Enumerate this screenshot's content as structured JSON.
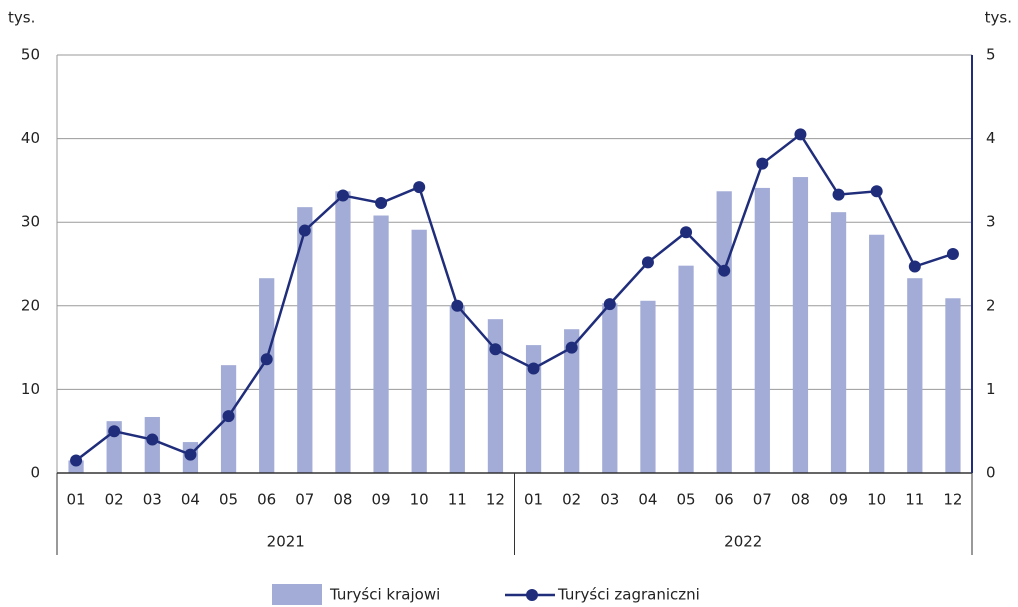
{
  "chart_data": {
    "type": "bar-line",
    "y_unit": "tys.",
    "y2_unit": "tys.",
    "categories": [
      "01",
      "02",
      "03",
      "04",
      "05",
      "06",
      "07",
      "08",
      "09",
      "10",
      "11",
      "12",
      "01",
      "02",
      "03",
      "04",
      "05",
      "06",
      "07",
      "08",
      "09",
      "10",
      "11",
      "12"
    ],
    "groups": [
      "2021",
      "2022"
    ],
    "series": [
      {
        "name": "Turyści krajowi",
        "color": "#a3acd6",
        "type": "bar",
        "values": [
          1.5,
          6.2,
          6.7,
          3.7,
          12.9,
          23.3,
          31.8,
          33.7,
          30.8,
          29.1,
          20,
          18.4,
          15.3,
          17.2,
          20.3,
          20.6,
          24.8,
          33.7,
          34.1,
          35.4,
          31.2,
          28.5,
          23.3,
          20.9
        ]
      },
      {
        "name": "Turyści zagraniczni",
        "color": "#1f2d7b",
        "type": "line",
        "axis": "y2",
        "values": [
          0.15,
          0.5,
          0.4,
          0.22,
          0.68,
          1.36,
          2.9,
          3.32,
          3.23,
          3.42,
          2.0,
          1.48,
          1.25,
          1.5,
          2.02,
          2.52,
          2.88,
          2.42,
          3.7,
          4.05,
          3.33,
          3.37,
          2.47,
          2.62
        ]
      }
    ],
    "ylim": [
      0,
      50
    ],
    "yticks": [
      0,
      10,
      20,
      30,
      40,
      50
    ],
    "y2lim": [
      0,
      5
    ],
    "y2ticks": [
      0,
      1,
      2,
      3,
      4,
      5
    ],
    "grid": true,
    "legend": "bottom"
  }
}
